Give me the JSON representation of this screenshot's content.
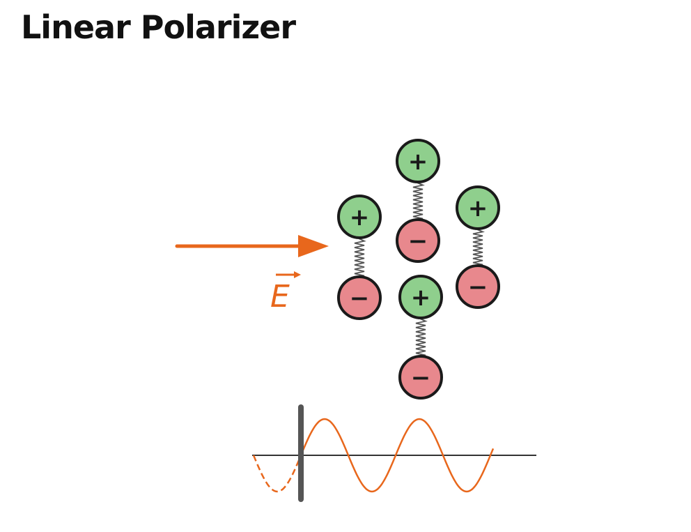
{
  "title": "Linear Polarizer",
  "field_label": "E",
  "charge_signs": {
    "positive": "+",
    "negative": "−"
  },
  "colors": {
    "positive": "#8fcf8d",
    "negative": "#e8888d",
    "outline": "#1a1a1a",
    "arrow": "#e8671c",
    "wave": "#e8671c",
    "axis": "#333333",
    "polarizer_bar": "#555555",
    "spring": "#555555"
  },
  "dipoles": [
    {
      "id": "dipole-1"
    },
    {
      "id": "dipole-2"
    },
    {
      "id": "dipole-3"
    },
    {
      "id": "dipole-4"
    }
  ]
}
